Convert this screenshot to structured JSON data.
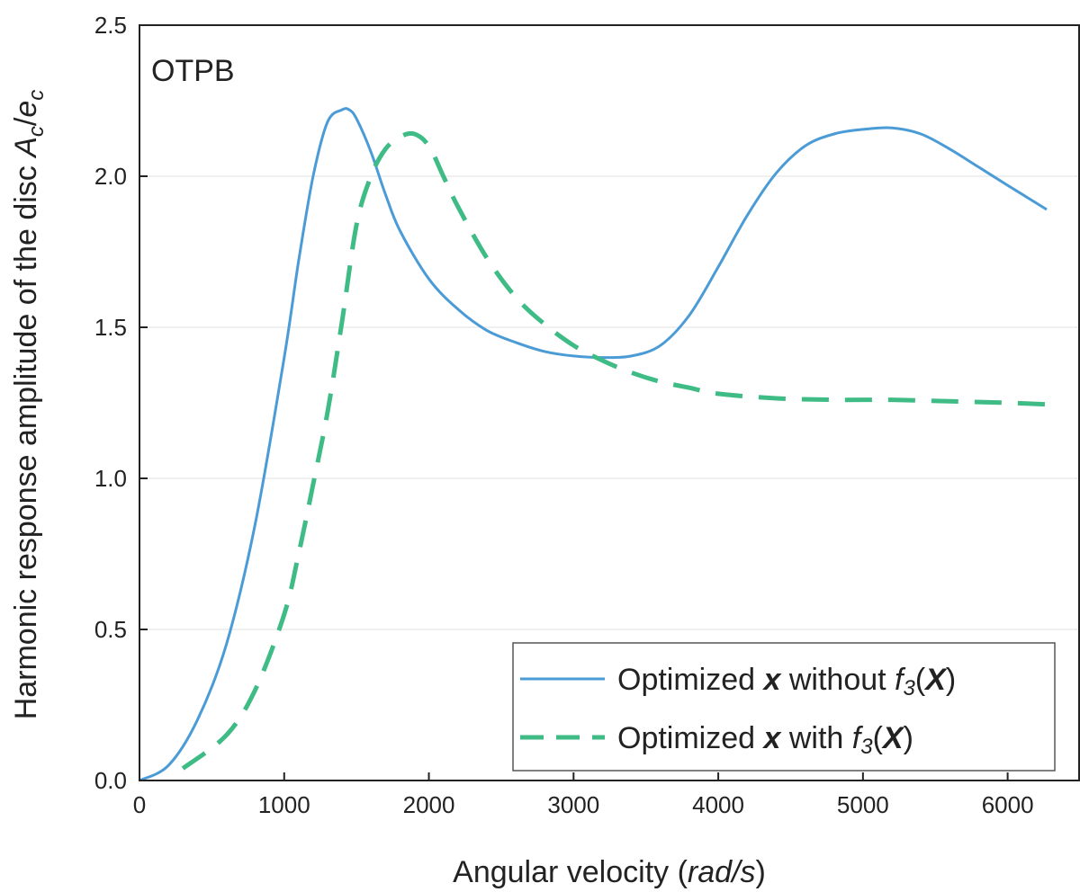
{
  "chart_data": {
    "type": "line",
    "annotation": "OTPB",
    "xlabel_prefix": "Angular velocity (",
    "xlabel_unit": "rad/s",
    "xlabel_suffix": ")",
    "ylabel_prefix": "Harmonic response amplitude of the disc ",
    "ylabel_A": "A",
    "ylabel_c1": "c",
    "ylabel_slash": "/",
    "ylabel_e": "e",
    "ylabel_c2": "c",
    "xlim": [
      0,
      6500
    ],
    "ylim": [
      0,
      2.5
    ],
    "xticks": [
      "0",
      "1000",
      "2000",
      "3000",
      "4000",
      "5000",
      "6000"
    ],
    "yticks": [
      "0.0",
      "0.5",
      "1.0",
      "1.5",
      "2.0",
      "2.5"
    ],
    "grid": "horizontal-light",
    "legend_position": "bottom-right",
    "legend": {
      "line1": {
        "a": "Optimized ",
        "b": "x",
        "c": " without ",
        "d": "f",
        "e": "3",
        "f": "(",
        "g": "X",
        "h": ")"
      },
      "line2": {
        "a": "Optimized ",
        "b": "x",
        "c": " with ",
        "d": "f",
        "e": "3",
        "f": "(",
        "g": "X",
        "h": ")"
      }
    },
    "series": [
      {
        "name": "Optimized x without f3(X)",
        "color": "#4a9bd6",
        "style": "solid",
        "x": [
          0,
          200,
          400,
          600,
          800,
          1000,
          1100,
          1200,
          1300,
          1400,
          1450,
          1500,
          1600,
          1700,
          1800,
          2000,
          2200,
          2400,
          2600,
          2800,
          3000,
          3200,
          3400,
          3600,
          3800,
          4000,
          4200,
          4400,
          4600,
          4800,
          5000,
          5200,
          5400,
          5600,
          5800,
          6000,
          6270
        ],
        "y": [
          0.0,
          0.05,
          0.2,
          0.45,
          0.85,
          1.4,
          1.72,
          2.0,
          2.18,
          2.22,
          2.22,
          2.19,
          2.08,
          1.94,
          1.82,
          1.66,
          1.56,
          1.49,
          1.45,
          1.42,
          1.405,
          1.4,
          1.405,
          1.44,
          1.54,
          1.7,
          1.87,
          2.01,
          2.1,
          2.14,
          2.155,
          2.16,
          2.14,
          2.09,
          2.03,
          1.97,
          1.89
        ]
      },
      {
        "name": "Optimized x with f3(X)",
        "color": "#3fbc86",
        "style": "dashed",
        "x": [
          300,
          600,
          800,
          1000,
          1100,
          1200,
          1300,
          1400,
          1500,
          1600,
          1700,
          1800,
          1900,
          2000,
          2100,
          2200,
          2400,
          2600,
          2800,
          3000,
          3200,
          3400,
          3600,
          3800,
          4000,
          4400,
          4800,
          5200,
          5600,
          6000,
          6270
        ],
        "y": [
          0.04,
          0.15,
          0.3,
          0.55,
          0.75,
          0.98,
          1.22,
          1.52,
          1.84,
          2.0,
          2.09,
          2.13,
          2.14,
          2.1,
          2.0,
          1.9,
          1.73,
          1.6,
          1.51,
          1.44,
          1.39,
          1.35,
          1.32,
          1.3,
          1.28,
          1.265,
          1.26,
          1.26,
          1.255,
          1.25,
          1.245
        ]
      }
    ]
  }
}
